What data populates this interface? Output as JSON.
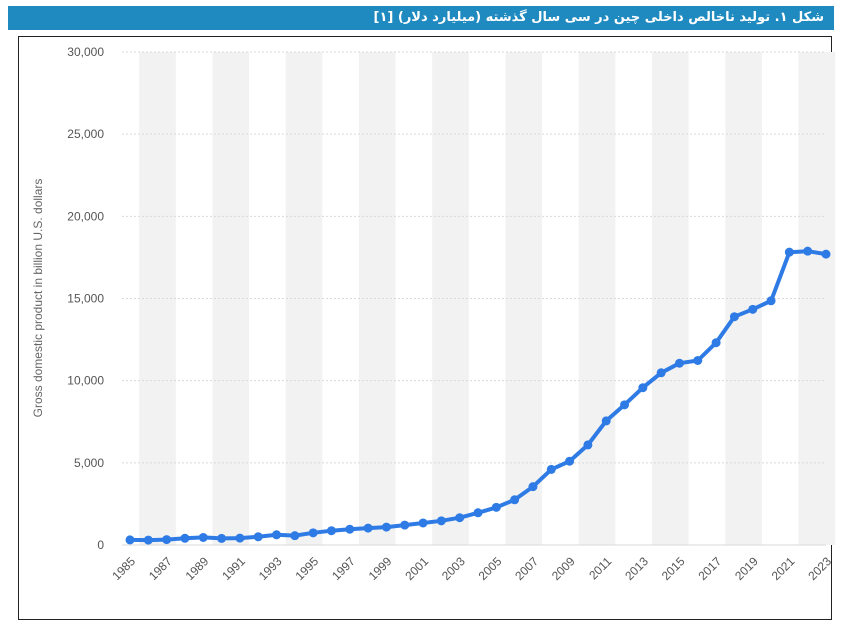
{
  "header": {
    "title": "شکل ۱. تولید ناخالص داخلی چین در سی سال گذشته (میلیارد دلار) [۱]"
  },
  "colors": {
    "line": "#2e7be6",
    "title_bg": "#1f8ac0",
    "band": "#f2f2f2",
    "grid": "#d9d9d9"
  },
  "chart_data": {
    "type": "line",
    "title": "شکل ۱. تولید ناخالص داخلی چین در سی سال گذشته (میلیارد دلار) [۱]",
    "xlabel": "",
    "ylabel": "Gross domestic product in billion U.S. dollars",
    "ylim": [
      0,
      30000
    ],
    "y_ticks": [
      0,
      5000,
      10000,
      15000,
      20000,
      25000,
      30000
    ],
    "y_tick_labels": [
      "0",
      "5,000",
      "10,000",
      "15,000",
      "20,000",
      "25,000",
      "30,000"
    ],
    "x_tick_labels": [
      "1985",
      "1987",
      "1989",
      "1991",
      "1993",
      "1995",
      "1997",
      "1999",
      "2001",
      "2003",
      "2005",
      "2007",
      "2009",
      "2011",
      "2013",
      "2015",
      "2017",
      "2019",
      "2021",
      "2023"
    ],
    "grid": true,
    "x": [
      1985,
      1986,
      1987,
      1988,
      1989,
      1990,
      1991,
      1992,
      1993,
      1994,
      1995,
      1996,
      1997,
      1998,
      1999,
      2000,
      2001,
      2002,
      2003,
      2004,
      2005,
      2006,
      2007,
      2008,
      2009,
      2010,
      2011,
      2012,
      2013,
      2014,
      2015,
      2016,
      2017,
      2018,
      2019,
      2020,
      2021,
      2022,
      2023
    ],
    "values": [
      310,
      300,
      330,
      410,
      460,
      400,
      420,
      500,
      620,
      570,
      740,
      870,
      960,
      1030,
      1090,
      1210,
      1340,
      1470,
      1660,
      1960,
      2290,
      2750,
      3550,
      4600,
      5100,
      6090,
      7550,
      8530,
      9570,
      10480,
      11060,
      11230,
      12310,
      13890,
      14340,
      14860,
      17820,
      17880,
      17700
    ]
  }
}
